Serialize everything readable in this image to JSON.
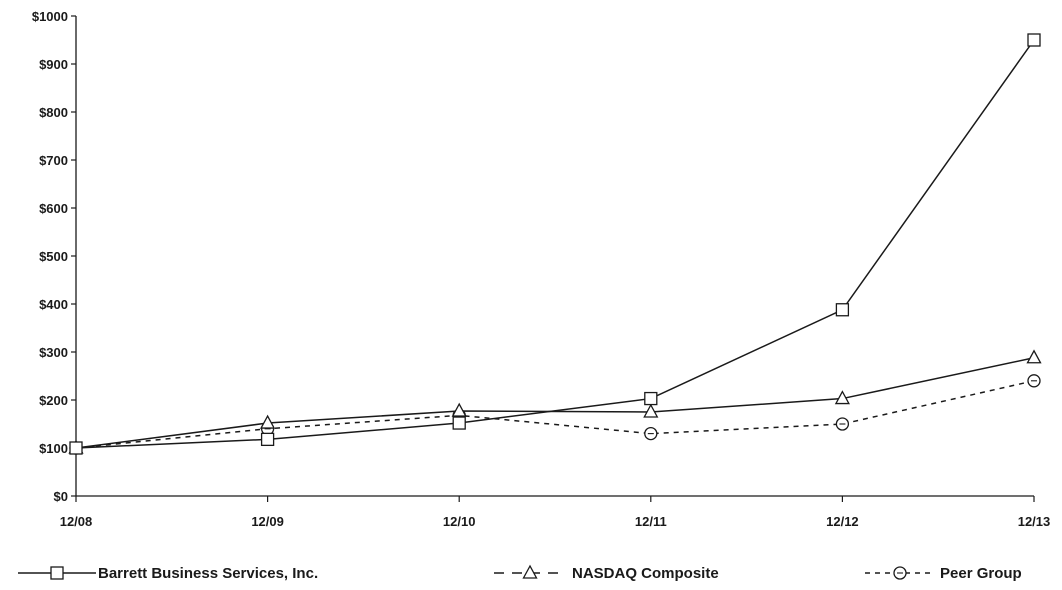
{
  "chart_data": {
    "type": "line",
    "title": "",
    "xlabel": "",
    "ylabel": "",
    "categories": [
      "12/08",
      "12/09",
      "12/10",
      "12/11",
      "12/12",
      "12/13"
    ],
    "ylim": [
      0,
      1000
    ],
    "yticks": [
      0,
      100,
      200,
      300,
      400,
      500,
      600,
      700,
      800,
      900,
      1000
    ],
    "ytick_labels": [
      "$0",
      "$100",
      "$200",
      "$300",
      "$400",
      "$500",
      "$600",
      "$700",
      "$800",
      "$900",
      "$1000"
    ],
    "grid": false,
    "legend_position": "bottom",
    "series": [
      {
        "name": "Barrett Business Services, Inc.",
        "values": [
          100,
          118,
          152,
          203,
          388,
          950
        ],
        "marker": "square",
        "line_style": "solid",
        "color": "#1a1a1a"
      },
      {
        "name": "NASDAQ Composite",
        "values": [
          100,
          152,
          177,
          175,
          203,
          288
        ],
        "marker": "triangle",
        "line_style": "solid",
        "color": "#1a1a1a"
      },
      {
        "name": "Peer Group",
        "values": [
          100,
          140,
          168,
          130,
          150,
          240
        ],
        "marker": "circle",
        "line_style": "dashed",
        "color": "#1a1a1a"
      }
    ]
  }
}
